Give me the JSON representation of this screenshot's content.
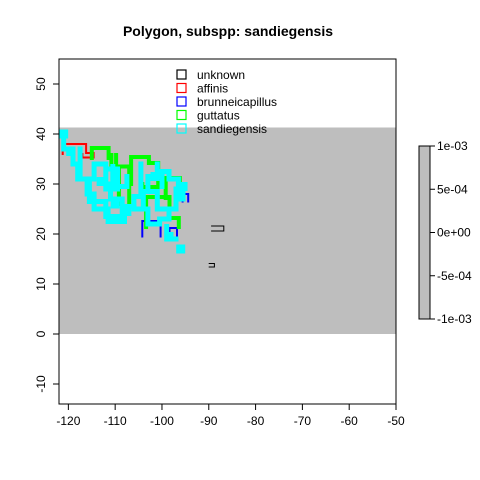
{
  "chart_data": {
    "type": "polygon-map",
    "title": "Polygon, subspp: sandiegensis",
    "xlabel": "",
    "ylabel": "",
    "xlim": [
      -122,
      -50
    ],
    "ylim": [
      -14,
      55
    ],
    "xticks": [
      -120,
      -110,
      -100,
      -90,
      -80,
      -70,
      -60,
      -50
    ],
    "yticks": [
      -10,
      0,
      10,
      20,
      30,
      40,
      50
    ],
    "background": {
      "fill_color": "#bebebe",
      "x_range": [
        -122,
        -50
      ],
      "y_range": [
        0,
        41.3
      ]
    },
    "legend": {
      "placement": "top-center",
      "entries": [
        {
          "label": "unknown",
          "color": "#000000"
        },
        {
          "label": "affinis",
          "color": "#ff0000"
        },
        {
          "label": "brunneicapillus",
          "color": "#0000ff"
        },
        {
          "label": "guttatus",
          "color": "#00ff00"
        },
        {
          "label": "sandiegensis",
          "color": "#00ffff"
        }
      ]
    },
    "colorbar": {
      "ticks": [
        "1e-03",
        "5e-04",
        "0e+00",
        "-5e-04",
        "-1e-03"
      ],
      "fill_color": "#bebebe"
    },
    "series": [
      {
        "name": "unknown",
        "color": "#000000",
        "stroke_width": 1,
        "polygons": [
          [
            [
              -89.4,
              20.6
            ],
            [
              -86.8,
              20.6
            ],
            [
              -86.8,
              21.6
            ],
            [
              -89.4,
              21.6
            ]
          ],
          [
            [
              -89.9,
              13.4
            ],
            [
              -88.8,
              13.4
            ],
            [
              -88.8,
              14.1
            ],
            [
              -89.9,
              14.1
            ]
          ]
        ]
      },
      {
        "name": "affinis",
        "color": "#ff0000",
        "stroke_width": 2,
        "polygons": [
          [
            [
              -121.2,
              36.0
            ],
            [
              -121.2,
              38.0
            ],
            [
              -116.2,
              38.0
            ],
            [
              -116.2,
              36.2
            ],
            [
              -114.6,
              36.2
            ],
            [
              -114.6,
              35.3
            ],
            [
              -117.0,
              35.3
            ],
            [
              -117.0,
              36.0
            ]
          ]
        ]
      },
      {
        "name": "brunneicapillus",
        "color": "#0000ff",
        "stroke_width": 2,
        "polygons": [
          [
            [
              -104.2,
              19.5
            ],
            [
              -104.2,
              22.6
            ],
            [
              -100.3,
              22.6
            ],
            [
              -100.3,
              19.5
            ]
          ],
          [
            [
              -98.4,
              19.4
            ],
            [
              -98.4,
              21.2
            ],
            [
              -96.8,
              21.2
            ],
            [
              -96.8,
              19.4
            ]
          ],
          [
            [
              -95.6,
              26.5
            ],
            [
              -95.6,
              28.0
            ],
            [
              -94.4,
              28.0
            ],
            [
              -94.4,
              26.5
            ]
          ]
        ]
      },
      {
        "name": "guttatus",
        "color": "#00ff00",
        "stroke_width": 4,
        "polygons": [
          [
            [
              -115.0,
              35.2
            ],
            [
              -115.0,
              37.2
            ],
            [
              -111.4,
              37.2
            ],
            [
              -111.4,
              35.2
            ]
          ],
          [
            [
              -110.8,
              35.8
            ],
            [
              -110.8,
              33.2
            ],
            [
              -109.8,
              33.2
            ],
            [
              -109.8,
              35.8
            ]
          ],
          [
            [
              -109.2,
              26.0
            ],
            [
              -109.2,
              33.5
            ],
            [
              -107.0,
              33.5
            ],
            [
              -107.0,
              26.0
            ]
          ],
          [
            [
              -106.6,
              30.0
            ],
            [
              -106.6,
              35.4
            ],
            [
              -102.8,
              35.4
            ],
            [
              -102.8,
              34.2
            ],
            [
              -100.8,
              34.2
            ],
            [
              -100.8,
              29.4
            ],
            [
              -104.2,
              29.4
            ],
            [
              -104.2,
              30.0
            ]
          ],
          [
            [
              -103.4,
              21.4
            ],
            [
              -103.4,
              27.4
            ],
            [
              -98.4,
              27.4
            ],
            [
              -98.4,
              23.2
            ],
            [
              -96.4,
              23.2
            ],
            [
              -96.4,
              21.4
            ]
          ],
          [
            [
              -99.2,
              27.2
            ],
            [
              -99.2,
              31.2
            ],
            [
              -96.2,
              31.2
            ],
            [
              -96.2,
              27.2
            ]
          ]
        ]
      },
      {
        "name": "sandiegensis",
        "color": "#00ffff",
        "stroke_width": 5,
        "polygons": [
          [
            [
              -121.0,
              40.0
            ],
            [
              -121.0,
              37.0
            ],
            [
              -119.0,
              37.0
            ],
            [
              -119.0,
              34.0
            ],
            [
              -118.0,
              34.0
            ],
            [
              -118.0,
              31.0
            ],
            [
              -116.0,
              31.0
            ],
            [
              -116.0,
              28.0
            ],
            [
              -114.5,
              28.0
            ],
            [
              -114.5,
              25.0
            ],
            [
              -111.5,
              25.0
            ],
            [
              -111.5,
              22.5
            ],
            [
              -108.0,
              22.5
            ],
            [
              -108.0,
              25.5
            ],
            [
              -106.0,
              25.5
            ],
            [
              -106.0,
              25.0
            ],
            [
              -103.0,
              25.0
            ],
            [
              -103.0,
              22.0
            ],
            [
              -100.5,
              22.0
            ],
            [
              -100.5,
              23.0
            ],
            [
              -98.5,
              23.0
            ],
            [
              -98.5,
              24.0
            ]
          ],
          [
            [
              -117.5,
              37.0
            ],
            [
              -117.5,
              31.0
            ],
            [
              -114.5,
              31.0
            ],
            [
              -114.5,
              34.0
            ],
            [
              -112.0,
              34.0
            ],
            [
              -112.0,
              29.0
            ],
            [
              -109.5,
              29.0
            ],
            [
              -109.5,
              33.0
            ],
            [
              -111.0,
              33.0
            ]
          ],
          [
            [
              -115.5,
              30.0
            ],
            [
              -115.5,
              26.5
            ],
            [
              -112.0,
              26.5
            ],
            [
              -112.0,
              23.5
            ],
            [
              -108.5,
              23.5
            ],
            [
              -108.5,
              27.0
            ],
            [
              -111.0,
              27.0
            ],
            [
              -111.0,
              30.0
            ]
          ],
          [
            [
              -104.5,
              34.0
            ],
            [
              -104.5,
              28.5
            ],
            [
              -101.0,
              28.5
            ],
            [
              -101.0,
              25.0
            ],
            [
              -97.0,
              25.0
            ],
            [
              -97.0,
              29.0
            ],
            [
              -95.5,
              29.0
            ],
            [
              -95.5,
              27.0
            ],
            [
              -96.5,
              27.0
            ],
            [
              -96.5,
              31.0
            ],
            [
              -98.5,
              31.0
            ],
            [
              -98.5,
              32.5
            ],
            [
              -101.0,
              32.5
            ],
            [
              -101.0,
              34.0
            ]
          ],
          [
            [
              -110.5,
              33.5
            ],
            [
              -110.5,
              29.5
            ],
            [
              -107.5,
              29.5
            ],
            [
              -107.5,
              31.5
            ]
          ],
          [
            [
              -103.0,
              29.5
            ],
            [
              -103.0,
              31.5
            ],
            [
              -100.0,
              31.5
            ],
            [
              -100.0,
              29.5
            ]
          ],
          [
            [
              -99.0,
              21.5
            ],
            [
              -99.0,
              19.0
            ],
            [
              -97.0,
              19.0
            ]
          ],
          [
            [
              -106.0,
              25.5
            ],
            [
              -106.0,
              27.5
            ],
            [
              -104.0,
              27.5
            ],
            [
              -104.0,
              25.5
            ]
          ]
        ],
        "squares": [
          [
            -121.0,
            40.0
          ],
          [
            -96.0,
            17.0
          ],
          [
            -98.5,
            19.5
          ],
          [
            -95.5,
            29.5
          ],
          [
            -110.0,
            26.0
          ],
          [
            -107.5,
            24.5
          ],
          [
            -101.5,
            31.5
          ],
          [
            -113.0,
            30.5
          ],
          [
            -119.5,
            36.5
          ]
        ]
      }
    ]
  }
}
